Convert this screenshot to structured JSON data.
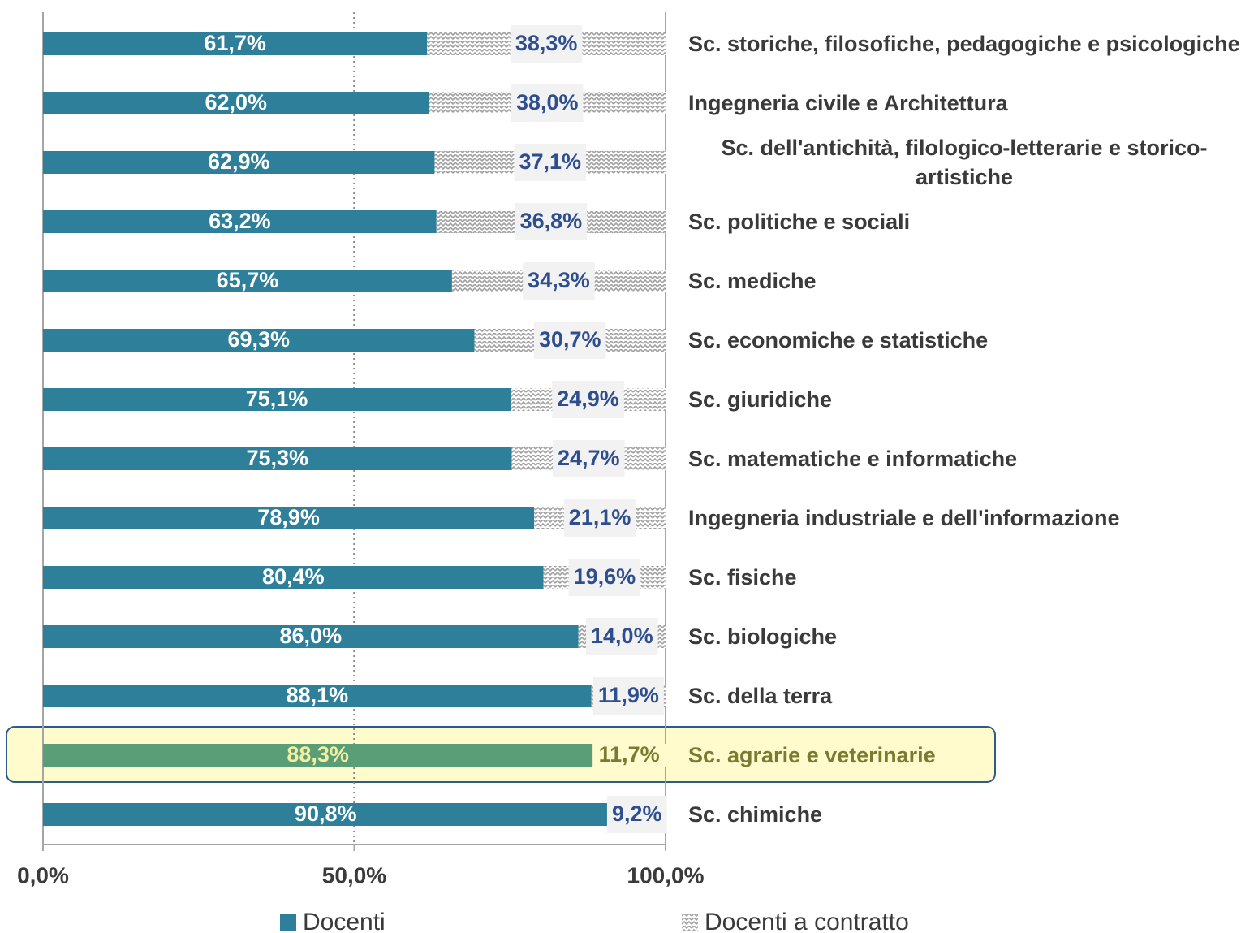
{
  "chart_data": {
    "type": "stacked_barh",
    "categories": [
      "Sc. storiche, filosofiche, pedagogiche e psicologiche",
      "Ingegneria civile e Architettura",
      "Sc. dell'antichità, filologico-letterarie e storico-artistiche",
      "Sc. politiche e sociali",
      "Sc. mediche",
      "Sc. economiche e statistiche",
      "Sc. giuridiche",
      "Sc. matematiche e informatiche",
      "Ingegneria industriale e dell'informazione",
      "Sc. fisiche",
      "Sc. biologiche",
      "Sc. della terra",
      "Sc. agrarie e veterinarie",
      "Sc. chimiche"
    ],
    "series": [
      {
        "name": "Docenti",
        "color": "#2e7f9a",
        "values": [
          61.7,
          62.0,
          62.9,
          63.2,
          65.7,
          69.3,
          75.1,
          75.3,
          78.9,
          80.4,
          86.0,
          88.1,
          88.3,
          90.8
        ],
        "value_labels": [
          "61,7%",
          "62,0%",
          "62,9%",
          "63,2%",
          "65,7%",
          "69,3%",
          "75,1%",
          "75,3%",
          "78,9%",
          "80,4%",
          "86,0%",
          "88,1%",
          "88,3%",
          "90,8%"
        ]
      },
      {
        "name": "Docenti a contratto",
        "color": "#a0a0a0",
        "pattern": "hatch",
        "values": [
          38.3,
          38.0,
          37.1,
          36.8,
          34.3,
          30.7,
          24.9,
          24.7,
          21.1,
          19.6,
          14.0,
          11.9,
          11.7,
          9.2
        ],
        "value_labels": [
          "38,3%",
          "38,0%",
          "37,1%",
          "36,8%",
          "34,3%",
          "30,7%",
          "24,9%",
          "24,7%",
          "21,1%",
          "19,6%",
          "14,0%",
          "11,9%",
          "11,7%",
          "9,2%"
        ]
      }
    ],
    "xlim": [
      0,
      100
    ],
    "xticks": [
      {
        "value": 0,
        "label": "0,0%"
      },
      {
        "value": 50,
        "label": "50,0%"
      },
      {
        "value": 100,
        "label": "100,0%"
      }
    ],
    "legend": "bottom",
    "highlight": {
      "index": 12,
      "color": "#5a9e78",
      "background": "#fffbcc",
      "border": "#2e5c8a"
    }
  }
}
